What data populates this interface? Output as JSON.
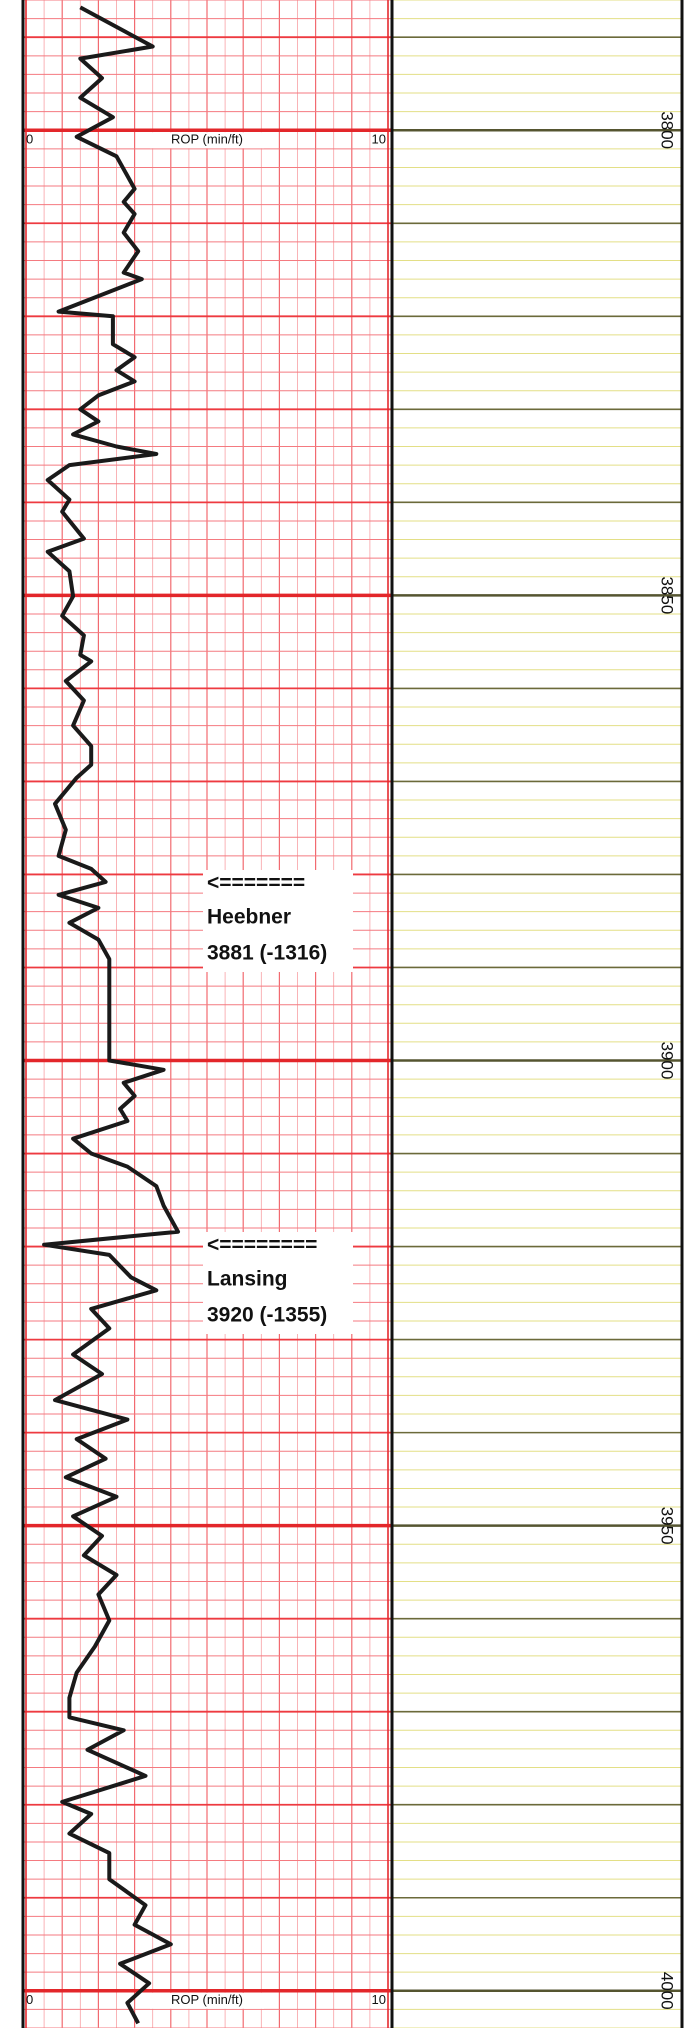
{
  "chart_data": {
    "type": "line",
    "x_label": "ROP (min/ft)",
    "xlim": [
      0,
      10
    ],
    "xticks": [
      0,
      10
    ],
    "ylim": [
      3786,
      4004
    ],
    "yticks": [
      3800,
      3850,
      3900,
      3950,
      4000
    ],
    "grid": true,
    "series": [
      {
        "color": "#1a1a1a",
        "y": [
          3786.8,
          3791,
          3792.3,
          3794.4,
          3796.5,
          3798.6,
          3800.7,
          3802.8,
          3806.3,
          3807.7,
          3809,
          3811,
          3813,
          3815.3,
          3816,
          3819.5,
          3820,
          3823,
          3824.4,
          3825.8,
          3827,
          3828.5,
          3830,
          3831.3,
          3832.7,
          3834,
          3834.8,
          3836,
          3837.6,
          3839.7,
          3841,
          3843.9,
          3845.3,
          3847.4,
          3850.1,
          3852.2,
          3854.3,
          3856.4,
          3857.1,
          3859.2,
          3861.3,
          3864,
          3866.2,
          3868.2,
          3869.6,
          3872.4,
          3875.2,
          3878,
          3879.4,
          3880.8,
          3882.2,
          3883.6,
          3885.2,
          3887,
          3889.1,
          3900,
          3901,
          3902.4,
          3903.8,
          3905.2,
          3906.5,
          3908.4,
          3910,
          3911.4,
          3913.5,
          3915.6,
          3918.4,
          3919.8,
          3920.9,
          3923.3,
          3924.7,
          3926.7,
          3928.8,
          3931.6,
          3933.7,
          3936.5,
          3938.6,
          3940.7,
          3942.8,
          3944.8,
          3946.9,
          3949,
          3951.1,
          3953.2,
          3955.3,
          3957.4,
          3960.2,
          3963,
          3965.8,
          3968.5,
          3970.6,
          3972,
          3974.1,
          3976.9,
          3979.7,
          3981,
          3983.1,
          3985.2,
          3988,
          3990.8,
          3992.9,
          3995,
          3997.1,
          3999.2,
          4001.3,
          4003.5
        ],
        "values": [
          1.5,
          3.5,
          1.5,
          2.1,
          1.5,
          2.4,
          1.4,
          2.5,
          3.0,
          2.7,
          3.0,
          2.7,
          3.1,
          2.7,
          3.2,
          0.9,
          2.4,
          2.4,
          3.0,
          2.5,
          3.0,
          2.0,
          1.5,
          2.0,
          1.3,
          2.5,
          3.6,
          1.2,
          0.6,
          1.2,
          1.0,
          1.6,
          0.6,
          1.2,
          1.3,
          1.0,
          1.6,
          1.5,
          1.8,
          1.1,
          1.6,
          1.3,
          1.8,
          1.8,
          1.4,
          0.8,
          1.1,
          0.9,
          1.8,
          2.2,
          0.9,
          2.0,
          1.2,
          2.0,
          2.3,
          2.3,
          3.8,
          2.7,
          3.0,
          2.6,
          2.8,
          1.3,
          1.8,
          2.8,
          3.6,
          3.8,
          4.2,
          0.5,
          2.3,
          2.9,
          3.6,
          1.8,
          2.3,
          1.3,
          2.1,
          0.8,
          2.8,
          1.4,
          2.2,
          1.1,
          2.5,
          1.3,
          2.1,
          1.6,
          2.5,
          2.0,
          2.3,
          1.9,
          1.4,
          1.2,
          1.2,
          2.7,
          1.7,
          3.3,
          1.0,
          1.8,
          1.2,
          2.3,
          2.3,
          3.3,
          3.0,
          4.0,
          2.6,
          3.4,
          2.8,
          3.1
        ]
      }
    ],
    "annotations": [
      {
        "arrow": "<=======",
        "name": "Heebner",
        "text": "3881 (-1316)"
      },
      {
        "arrow": "<========",
        "name": "Lansing",
        "text": "3920 (-1355)"
      }
    ]
  }
}
